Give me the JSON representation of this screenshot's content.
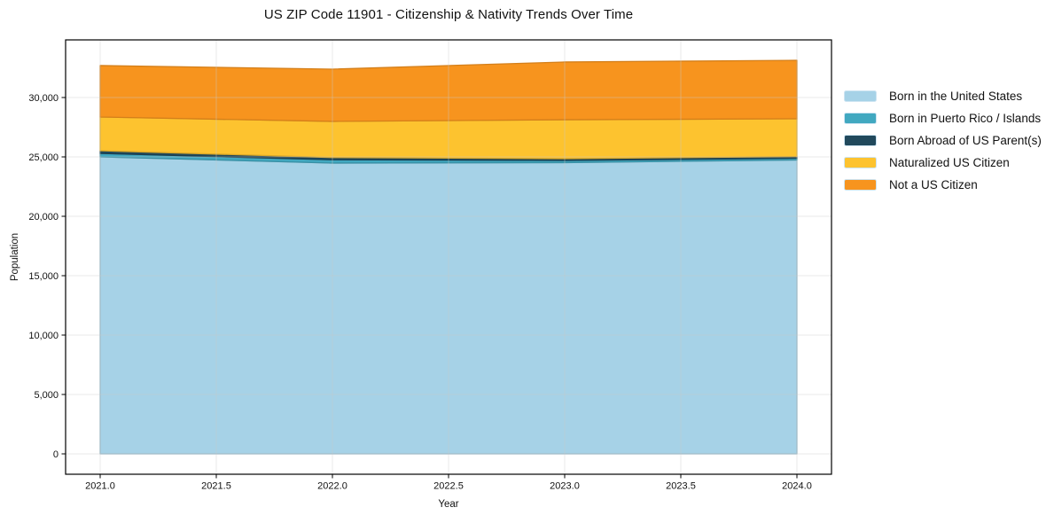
{
  "chart_data": {
    "type": "area",
    "stacked": true,
    "title": "US ZIP Code 11901 - Citizenship & Nativity Trends Over Time",
    "xlabel": "Year",
    "ylabel": "Population",
    "x": [
      2021,
      2022,
      2023,
      2024
    ],
    "series": [
      {
        "name": "Born in the United States",
        "color": "#A6D2E7",
        "values": [
          25000,
          24480,
          24520,
          24740
        ]
      },
      {
        "name": "Born in Puerto Rico / Islands",
        "color": "#41A8C0",
        "values": [
          290,
          280,
          180,
          150
        ]
      },
      {
        "name": "Born Abroad of US Parent(s)",
        "color": "#21495C",
        "values": [
          230,
          190,
          150,
          140
        ]
      },
      {
        "name": "Naturalized US Citizen",
        "color": "#FDC32F",
        "values": [
          2840,
          3040,
          3280,
          3180
        ]
      },
      {
        "name": "Not a US Citizen",
        "color": "#F7941E",
        "values": [
          4330,
          4400,
          4860,
          4920
        ]
      }
    ],
    "stacked_totals": [
      32690,
      32390,
      32990,
      33130
    ],
    "xticks": {
      "values": [
        2021.0,
        2021.5,
        2022.0,
        2022.5,
        2023.0,
        2023.5,
        2024.0
      ],
      "labels": [
        "2021.0",
        "2021.5",
        "2022.0",
        "2022.5",
        "2023.0",
        "2023.5",
        "2024.0"
      ]
    },
    "yticks": {
      "values": [
        0,
        5000,
        10000,
        15000,
        20000,
        25000,
        30000
      ],
      "labels": [
        "0",
        "5,000",
        "10,000",
        "15,000",
        "20,000",
        "25,000",
        "30,000"
      ]
    },
    "xlim": [
      2020.85,
      2024.15
    ],
    "ylim": [
      -1700,
      34850
    ],
    "grid": true,
    "legend_position": "right"
  },
  "colors": {
    "background": "#ffffff",
    "spine": "#000000",
    "grid": "#c9c9c9",
    "text": "#111111",
    "legend_swatch_border": "#cde4f2"
  }
}
